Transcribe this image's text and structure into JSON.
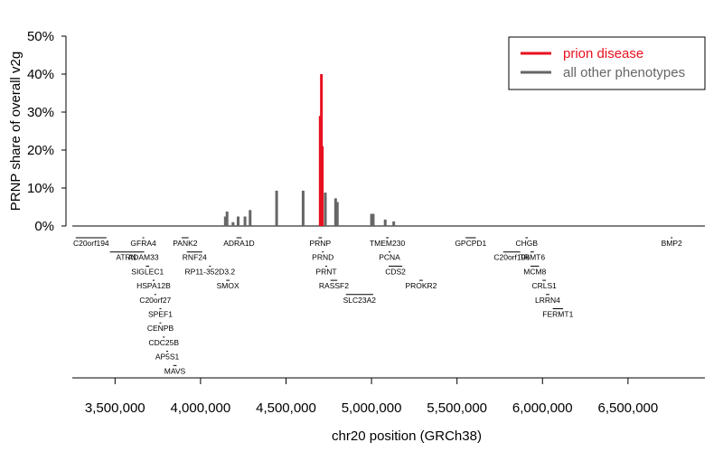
{
  "chart_data": {
    "type": "bar",
    "xlabel": "chr20 position (GRCh38)",
    "ylabel": "PRNP share of overall v2g",
    "xlim": [
      3250000,
      6950000
    ],
    "ylim": [
      0,
      0.5
    ],
    "x_ticks": [
      3500000,
      4000000,
      4500000,
      5000000,
      5500000,
      6000000,
      6500000
    ],
    "x_tick_labels": [
      "3,500,000",
      "4,000,000",
      "4,500,000",
      "5,000,000",
      "5,500,000",
      "6,000,000",
      "6,500,000"
    ],
    "y_ticks": [
      0,
      0.1,
      0.2,
      0.3,
      0.4,
      0.5
    ],
    "y_tick_labels": [
      "0%",
      "10%",
      "20%",
      "30%",
      "40%",
      "50%"
    ],
    "legend": {
      "placement": "top-right",
      "entries": [
        {
          "label": "prion disease",
          "color": "#e8101e"
        },
        {
          "label": "all other phenotypes",
          "color": "#666666"
        }
      ]
    },
    "series": [
      {
        "name": "all other phenotypes",
        "color": "#666666",
        "bars": [
          {
            "x": 4145000,
            "y": 0.025
          },
          {
            "x": 4155000,
            "y": 0.038
          },
          {
            "x": 4190000,
            "y": 0.01
          },
          {
            "x": 4220000,
            "y": 0.025
          },
          {
            "x": 4260000,
            "y": 0.025
          },
          {
            "x": 4290000,
            "y": 0.042
          },
          {
            "x": 4445000,
            "y": 0.093
          },
          {
            "x": 4600000,
            "y": 0.093
          },
          {
            "x": 4730000,
            "y": 0.088
          },
          {
            "x": 4790000,
            "y": 0.073
          },
          {
            "x": 4800000,
            "y": 0.063
          },
          {
            "x": 5000000,
            "y": 0.032
          },
          {
            "x": 5010000,
            "y": 0.032
          },
          {
            "x": 5080000,
            "y": 0.017
          },
          {
            "x": 5130000,
            "y": 0.012
          }
        ]
      },
      {
        "name": "prion disease",
        "color": "#e8101e",
        "bars": [
          {
            "x": 4700000,
            "y": 0.29
          },
          {
            "x": 4707000,
            "y": 0.4
          },
          {
            "x": 4712000,
            "y": 0.21
          }
        ]
      }
    ],
    "genes": [
      {
        "name": "C20orf194",
        "start": 3270000,
        "end": 3450000,
        "row": 0
      },
      {
        "name": "GFRA4",
        "start": 3660000,
        "end": 3670000,
        "row": 0
      },
      {
        "name": "PANK2",
        "start": 3890000,
        "end": 3930000,
        "row": 0
      },
      {
        "name": "ADRA1D",
        "start": 4210000,
        "end": 4240000,
        "row": 0
      },
      {
        "name": "PRNP",
        "start": 4690000,
        "end": 4710000,
        "row": 0
      },
      {
        "name": "TMEM230",
        "start": 5085000,
        "end": 5100000,
        "row": 0
      },
      {
        "name": "GPCPD1",
        "start": 5550000,
        "end": 5610000,
        "row": 0
      },
      {
        "name": "CHGB",
        "start": 5900000,
        "end": 5915000,
        "row": 0
      },
      {
        "name": "BMP2",
        "start": 6750000,
        "end": 6760000,
        "row": 0
      },
      {
        "name": "ATRN",
        "start": 3470000,
        "end": 3660000,
        "row": 1
      },
      {
        "name": "ADAM33",
        "start": 3660000,
        "end": 3670000,
        "row": 1
      },
      {
        "name": "RNF24",
        "start": 3920000,
        "end": 4010000,
        "row": 1
      },
      {
        "name": "PRND",
        "start": 4710000,
        "end": 4720000,
        "row": 1
      },
      {
        "name": "PCNA",
        "start": 5100000,
        "end": 5110000,
        "row": 1
      },
      {
        "name": "C20orf196",
        "start": 5770000,
        "end": 5870000,
        "row": 1
      },
      {
        "name": "TRMT6",
        "start": 5930000,
        "end": 5950000,
        "row": 1
      },
      {
        "name": "SIGLEC1",
        "start": 3680000,
        "end": 3700000,
        "row": 2
      },
      {
        "name": "RP11-352D3.2",
        "start": 4050000,
        "end": 4060000,
        "row": 2
      },
      {
        "name": "PRNT",
        "start": 4730000,
        "end": 4740000,
        "row": 2
      },
      {
        "name": "CDS2",
        "start": 5100000,
        "end": 5180000,
        "row": 2
      },
      {
        "name": "MCM8",
        "start": 5930000,
        "end": 5980000,
        "row": 2
      },
      {
        "name": "HSPA12B",
        "start": 3720000,
        "end": 3730000,
        "row": 3
      },
      {
        "name": "SMOX",
        "start": 4150000,
        "end": 4170000,
        "row": 3
      },
      {
        "name": "RASSF2",
        "start": 4760000,
        "end": 4800000,
        "row": 3
      },
      {
        "name": "PROKR2",
        "start": 5280000,
        "end": 5300000,
        "row": 3
      },
      {
        "name": "CRLS1",
        "start": 6000000,
        "end": 6020000,
        "row": 3
      },
      {
        "name": "C20orf27",
        "start": 3730000,
        "end": 3740000,
        "row": 4
      },
      {
        "name": "SLC23A2",
        "start": 4850000,
        "end": 5010000,
        "row": 4
      },
      {
        "name": "LRRN4",
        "start": 6020000,
        "end": 6040000,
        "row": 4
      },
      {
        "name": "SPEF1",
        "start": 3760000,
        "end": 3770000,
        "row": 5
      },
      {
        "name": "FERMT1",
        "start": 6060000,
        "end": 6120000,
        "row": 5
      },
      {
        "name": "CENPB",
        "start": 3760000,
        "end": 3770000,
        "row": 6
      },
      {
        "name": "CDC25B",
        "start": 3780000,
        "end": 3790000,
        "row": 7
      },
      {
        "name": "AP5S1",
        "start": 3800000,
        "end": 3810000,
        "row": 8
      },
      {
        "name": "MAVS",
        "start": 3840000,
        "end": 3860000,
        "row": 9
      }
    ]
  }
}
